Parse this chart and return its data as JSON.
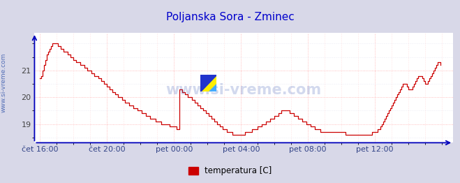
{
  "title": "Poljanska Sora - Zminec",
  "title_color": "#0000cc",
  "title_fontsize": 11,
  "ylabel_text": "www.si-vreme.com",
  "watermark": "www.si-vreme.com",
  "legend_label": "temperatura [C]",
  "legend_color": "#cc0000",
  "background_color": "#d8d8e8",
  "plot_bg_color": "#ffffff",
  "line_color": "#cc0000",
  "axis_color": "#0000bb",
  "grid_color_major": "#ff9999",
  "grid_color_minor": "#ddddee",
  "ylim": [
    18.3,
    22.4
  ],
  "yticks": [
    19,
    20,
    21
  ],
  "xtick_labels": [
    "čet 16:00",
    "čet 20:00",
    "pet 00:00",
    "pet 04:00",
    "pet 08:00",
    "pet 12:00"
  ],
  "xtick_positions": [
    0,
    48,
    96,
    144,
    192,
    240
  ],
  "total_points": 288,
  "temperatures": [
    20.7,
    20.8,
    21.0,
    21.2,
    21.4,
    21.6,
    21.7,
    21.8,
    21.9,
    22.0,
    22.0,
    22.0,
    22.0,
    21.9,
    21.9,
    21.8,
    21.8,
    21.7,
    21.7,
    21.7,
    21.6,
    21.6,
    21.5,
    21.5,
    21.4,
    21.4,
    21.3,
    21.3,
    21.3,
    21.2,
    21.2,
    21.2,
    21.1,
    21.1,
    21.0,
    21.0,
    21.0,
    20.9,
    20.9,
    20.8,
    20.8,
    20.8,
    20.7,
    20.7,
    20.6,
    20.6,
    20.5,
    20.5,
    20.4,
    20.4,
    20.3,
    20.3,
    20.2,
    20.2,
    20.1,
    20.1,
    20.0,
    20.0,
    20.0,
    19.9,
    19.9,
    19.8,
    19.8,
    19.8,
    19.7,
    19.7,
    19.7,
    19.6,
    19.6,
    19.6,
    19.5,
    19.5,
    19.5,
    19.4,
    19.4,
    19.4,
    19.3,
    19.3,
    19.3,
    19.2,
    19.2,
    19.2,
    19.2,
    19.1,
    19.1,
    19.1,
    19.1,
    19.0,
    19.0,
    19.0,
    19.0,
    19.0,
    19.0,
    18.9,
    18.9,
    18.9,
    18.9,
    18.9,
    18.8,
    18.8,
    20.3,
    20.3,
    20.2,
    20.2,
    20.1,
    20.1,
    20.0,
    20.0,
    20.0,
    19.9,
    19.9,
    19.8,
    19.8,
    19.7,
    19.7,
    19.6,
    19.6,
    19.5,
    19.5,
    19.4,
    19.4,
    19.3,
    19.3,
    19.2,
    19.2,
    19.1,
    19.1,
    19.0,
    19.0,
    18.9,
    18.9,
    18.8,
    18.8,
    18.8,
    18.7,
    18.7,
    18.7,
    18.7,
    18.6,
    18.6,
    18.6,
    18.6,
    18.6,
    18.6,
    18.6,
    18.6,
    18.6,
    18.7,
    18.7,
    18.7,
    18.7,
    18.7,
    18.8,
    18.8,
    18.8,
    18.8,
    18.9,
    18.9,
    18.9,
    19.0,
    19.0,
    19.0,
    19.1,
    19.1,
    19.1,
    19.2,
    19.2,
    19.2,
    19.3,
    19.3,
    19.3,
    19.4,
    19.4,
    19.5,
    19.5,
    19.5,
    19.5,
    19.5,
    19.5,
    19.4,
    19.4,
    19.4,
    19.3,
    19.3,
    19.3,
    19.2,
    19.2,
    19.2,
    19.1,
    19.1,
    19.1,
    19.0,
    19.0,
    19.0,
    18.9,
    18.9,
    18.9,
    18.8,
    18.8,
    18.8,
    18.8,
    18.7,
    18.7,
    18.7,
    18.7,
    18.7,
    18.7,
    18.7,
    18.7,
    18.7,
    18.7,
    18.7,
    18.7,
    18.7,
    18.7,
    18.7,
    18.7,
    18.7,
    18.7,
    18.6,
    18.6,
    18.6,
    18.6,
    18.6,
    18.6,
    18.6,
    18.6,
    18.6,
    18.6,
    18.6,
    18.6,
    18.6,
    18.6,
    18.6,
    18.6,
    18.6,
    18.6,
    18.6,
    18.7,
    18.7,
    18.7,
    18.7,
    18.8,
    18.8,
    18.9,
    19.0,
    19.1,
    19.2,
    19.3,
    19.4,
    19.5,
    19.6,
    19.7,
    19.8,
    19.9,
    20.0,
    20.1,
    20.2,
    20.3,
    20.4,
    20.5,
    20.5,
    20.5,
    20.4,
    20.3,
    20.3,
    20.3,
    20.4,
    20.5,
    20.6,
    20.7,
    20.8,
    20.8,
    20.8,
    20.7,
    20.6,
    20.5,
    20.5,
    20.6,
    20.7,
    20.8,
    20.9,
    21.0,
    21.1,
    21.2,
    21.3,
    21.3,
    21.2,
    21.1,
    21.4
  ]
}
